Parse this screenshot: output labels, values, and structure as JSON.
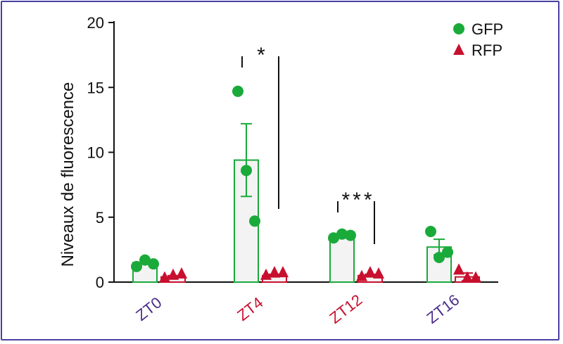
{
  "chart_data": {
    "type": "bar",
    "categories": [
      "ZT0",
      "ZT4",
      "ZT12",
      "ZT16"
    ],
    "category_colors": [
      "#4b2d8a",
      "#c8102e",
      "#c8102e",
      "#4b2d8a"
    ],
    "ylabel": "Niveaux de fluorescence",
    "ylim": [
      0,
      20
    ],
    "yticks": [
      0,
      5,
      10,
      15,
      20
    ],
    "grid": false,
    "legend_position": "top-right",
    "series": [
      {
        "name": "GFP",
        "marker": "circle",
        "color": "#1aaa3a",
        "values": [
          1.5,
          9.4,
          3.5,
          2.7
        ],
        "errors": [
          0,
          2.8,
          0.1,
          0.6
        ],
        "points": [
          [
            1.2,
            1.7,
            1.4
          ],
          [
            14.7,
            8.6,
            4.7
          ],
          [
            3.4,
            3.7,
            3.6
          ],
          [
            3.9,
            1.9,
            2.3
          ]
        ]
      },
      {
        "name": "RFP",
        "marker": "triangle",
        "color": "#c8102e",
        "values": [
          0.4,
          0.5,
          0.5,
          0.4
        ],
        "errors": [
          0.1,
          0.1,
          0.1,
          0.3
        ],
        "points": [
          [
            0.3,
            0.5,
            0.6
          ],
          [
            0.5,
            0.7,
            0.7
          ],
          [
            0.4,
            0.7,
            0.6
          ],
          [
            0.9,
            0.3,
            0.3
          ]
        ]
      }
    ],
    "annotations": [
      {
        "text": "*",
        "category_index": 1
      },
      {
        "text": "***",
        "category_index": 2
      }
    ]
  }
}
